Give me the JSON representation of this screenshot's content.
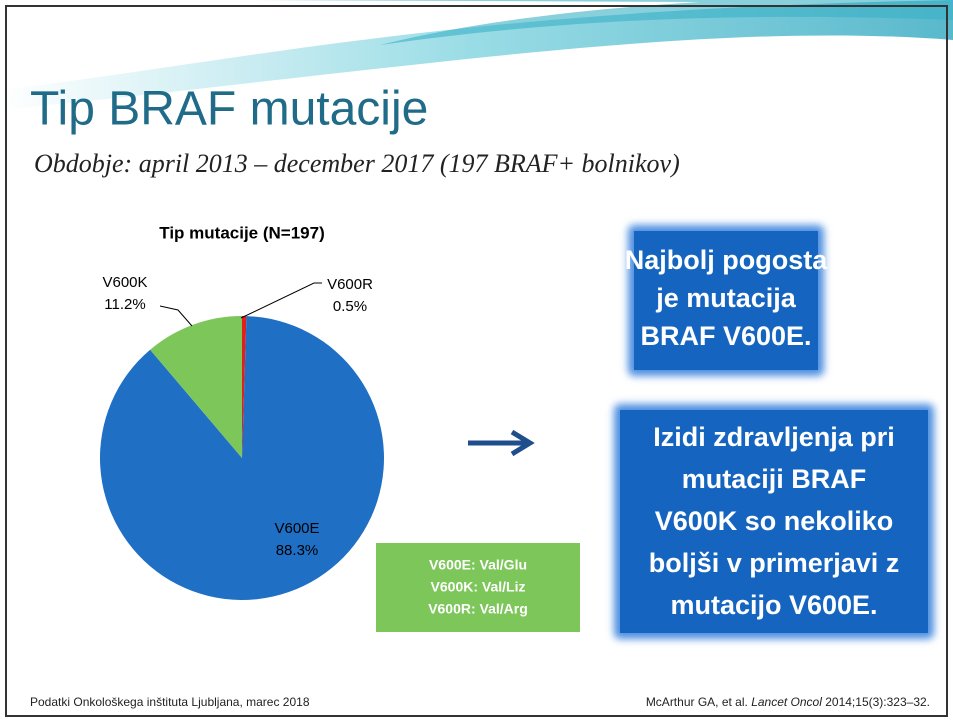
{
  "title": "Tip BRAF mutacije",
  "subtitle": "Obdobje: april 2013 – december 2017 (197 BRAF+ bolnikov)",
  "chart_data": {
    "type": "pie",
    "title": "Tip mutacije (N=197)",
    "categories": [
      "V600E",
      "V600K",
      "V600R"
    ],
    "values": [
      88.3,
      11.2,
      0.5
    ],
    "value_labels": [
      "88.3%",
      "11.2%",
      "0.5%"
    ],
    "colors": [
      "#1f6fc5",
      "#7cc65a",
      "#e0201e"
    ]
  },
  "legend_box": {
    "lines": [
      "V600E: Val/Glu",
      "V600K: Val/Liz",
      "V600R: Val/Arg"
    ]
  },
  "callouts": [
    {
      "lines": [
        "Najbolj pogosta",
        "je mutacija",
        "BRAF V600E."
      ]
    },
    {
      "lines": [
        "Izidi zdravljenja pri",
        "mutaciji BRAF",
        "V600K so nekoliko",
        "boljši v primerjavi z",
        "mutacijo V600E."
      ]
    }
  ],
  "footer": {
    "left": "Podatki Onkološkega inštituta Ljubljana, marec 2018",
    "right": [
      "McArthur GA, et al. ",
      "Lancet Oncol",
      " 2014;15(3):323–32."
    ]
  }
}
